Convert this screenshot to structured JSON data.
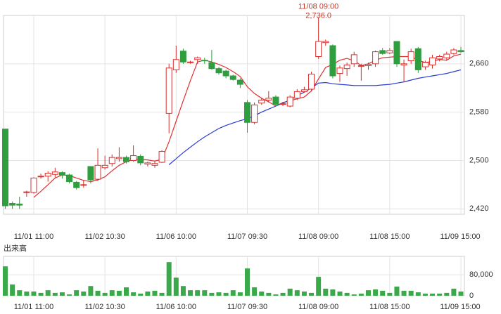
{
  "chart_data": [
    {
      "type": "candlestick",
      "categories": [
        null,
        null,
        null,
        null,
        "11/01 11:00",
        null,
        null,
        null,
        null,
        null,
        null,
        null,
        null,
        null,
        "11/02 10:30",
        null,
        null,
        null,
        null,
        null,
        null,
        null,
        null,
        null,
        "11/06 10:00",
        null,
        null,
        null,
        null,
        null,
        null,
        null,
        null,
        null,
        "11/07 09:30",
        null,
        null,
        null,
        null,
        null,
        null,
        null,
        null,
        null,
        "11/08 09:00",
        null,
        null,
        null,
        null,
        null,
        null,
        null,
        null,
        null,
        "11/08 15:00",
        null,
        null,
        null,
        null,
        null,
        null,
        null,
        null,
        null,
        "11/09 15:00"
      ],
      "open": [
        2552,
        2429,
        2428,
        2447,
        2447,
        2474,
        2474,
        2477,
        2480,
        2476,
        2464,
        2459,
        2490,
        2469,
        2488,
        2495,
        2503,
        2505,
        2500,
        2507,
        2494,
        2492,
        2497,
        2578,
        2650,
        2681,
        2663,
        2667,
        2666,
        2662,
        2652,
        2648,
        2640,
        2633,
        2596,
        2563,
        2595,
        2600,
        2605,
        2594,
        2590,
        2603,
        2614,
        2618,
        2672,
        2695,
        2690,
        2644,
        2652,
        2660,
        2657,
        2657,
        2660,
        2682,
        2678,
        2697,
        2658,
        2665,
        2685,
        2655,
        2658,
        2668,
        2670,
        2677,
        2682
      ],
      "high": [
        2552,
        2432,
        2440,
        2450,
        2472,
        2478,
        2482,
        2488,
        2482,
        2478,
        2466,
        2468,
        2490,
        2520,
        2508,
        2510,
        2522,
        2508,
        2525,
        2510,
        2498,
        2500,
        2517,
        2660,
        2690,
        2685,
        2665,
        2672,
        2670,
        2683,
        2655,
        2650,
        2642,
        2636,
        2600,
        2596,
        2603,
        2615,
        2608,
        2597,
        2608,
        2618,
        2622,
        2647,
        2736,
        2700,
        2692,
        2657,
        2662,
        2680,
        2660,
        2662,
        2682,
        2686,
        2686,
        2697,
        2667,
        2685,
        2688,
        2665,
        2675,
        2675,
        2680,
        2686,
        2688
      ],
      "low": [
        2420,
        2420,
        2420,
        2440,
        2445,
        2470,
        2465,
        2472,
        2470,
        2462,
        2452,
        2455,
        2462,
        2466,
        2485,
        2490,
        2498,
        2495,
        2498,
        2492,
        2490,
        2488,
        2496,
        2545,
        2645,
        2660,
        2660,
        2660,
        2660,
        2650,
        2642,
        2636,
        2632,
        2620,
        2546,
        2560,
        2592,
        2596,
        2590,
        2590,
        2588,
        2600,
        2612,
        2615,
        2668,
        2690,
        2636,
        2630,
        2640,
        2655,
        2632,
        2650,
        2655,
        2675,
        2676,
        2655,
        2630,
        2660,
        2645,
        2650,
        2652,
        2664,
        2665,
        2675,
        2678
      ],
      "close": [
        2425,
        2426,
        2426,
        2448,
        2471,
        2474,
        2479,
        2481,
        2476,
        2465,
        2455,
        2460,
        2468,
        2492,
        2492,
        2505,
        2505,
        2498,
        2508,
        2496,
        2496,
        2495,
        2515,
        2653,
        2667,
        2663,
        2663,
        2670,
        2665,
        2652,
        2645,
        2640,
        2634,
        2626,
        2563,
        2592,
        2600,
        2603,
        2593,
        2594,
        2605,
        2614,
        2617,
        2643,
        2697,
        2697,
        2640,
        2653,
        2658,
        2675,
        2657,
        2659,
        2680,
        2677,
        2682,
        2660,
        2660,
        2680,
        2650,
        2662,
        2670,
        2672,
        2676,
        2683,
        2680
      ],
      "up_color": "#d9312e",
      "down_color": "#2e9e3e",
      "lines": [
        {
          "color": "#e03030",
          "values": [
            null,
            null,
            null,
            null,
            2439,
            2449,
            2460,
            2471,
            2476,
            2475,
            2471,
            2467,
            2465,
            2468,
            2473,
            2483,
            2492,
            2498,
            2502,
            2502,
            2501,
            2499,
            2502,
            2531,
            2565,
            2599,
            2632,
            2663,
            2666,
            2663,
            2659,
            2654,
            2647,
            2639,
            2622,
            2611,
            2603,
            2597,
            2590,
            2596,
            2599,
            2602,
            2605,
            2615,
            2635,
            2654,
            2659,
            2666,
            2669,
            2665,
            2657,
            2660,
            2666,
            2670,
            2671,
            2672,
            2672,
            2672,
            2666,
            2662,
            2664,
            2667,
            2666,
            2673,
            2676
          ]
        },
        {
          "color": "#2a3bd6",
          "values": [
            null,
            null,
            null,
            null,
            null,
            null,
            null,
            null,
            null,
            null,
            null,
            null,
            null,
            null,
            null,
            null,
            null,
            null,
            null,
            null,
            null,
            null,
            null,
            2493,
            2503,
            2513,
            2522,
            2531,
            2539,
            2546,
            2553,
            2558,
            2562,
            2566,
            2569,
            2574,
            2580,
            2585,
            2590,
            2595,
            2600,
            2607,
            2613,
            2620,
            2628,
            2629,
            2627,
            2626,
            2625,
            2624,
            2624,
            2624,
            2624,
            2625,
            2626,
            2628,
            2630,
            2633,
            2636,
            2638,
            2640,
            2642,
            2644,
            2647,
            2650
          ]
        }
      ],
      "annotation": {
        "text": "11/08 09:00",
        "value": 2736,
        "label": "2,736.0"
      },
      "ylim": [
        2411,
        2740
      ],
      "yticks": [
        {
          "value": 2420,
          "label": "2,420"
        },
        {
          "value": 2500,
          "label": "2,500"
        },
        {
          "value": 2580,
          "label": "2,580"
        },
        {
          "value": 2660,
          "label": "2,660"
        }
      ],
      "grid": true
    },
    {
      "type": "bar",
      "title": "出来高",
      "color": "#3aa94a",
      "categories": [
        null,
        null,
        null,
        null,
        "11/01 11:00",
        null,
        null,
        null,
        null,
        null,
        null,
        null,
        null,
        null,
        "11/02 10:30",
        null,
        null,
        null,
        null,
        null,
        null,
        null,
        null,
        null,
        "11/06 10:00",
        null,
        null,
        null,
        null,
        null,
        null,
        null,
        null,
        null,
        "11/07 09:30",
        null,
        null,
        null,
        null,
        null,
        null,
        null,
        null,
        null,
        "11/08 09:00",
        null,
        null,
        null,
        null,
        null,
        null,
        null,
        null,
        null,
        "11/08 15:00",
        null,
        null,
        null,
        null,
        null,
        null,
        null,
        null,
        null,
        "11/09 15:00"
      ],
      "values": [
        112000,
        43000,
        21000,
        16000,
        16000,
        11000,
        21000,
        11000,
        13000,
        5000,
        21000,
        16000,
        37000,
        19000,
        11000,
        21000,
        19000,
        32000,
        13000,
        8000,
        16000,
        19000,
        11000,
        128000,
        69000,
        37000,
        21000,
        21000,
        21000,
        11000,
        13000,
        11000,
        21000,
        13000,
        104000,
        32000,
        16000,
        11000,
        5000,
        11000,
        27000,
        21000,
        16000,
        11000,
        72000,
        27000,
        24000,
        16000,
        11000,
        5000,
        8000,
        21000,
        24000,
        19000,
        11000,
        35000,
        19000,
        19000,
        13000,
        8000,
        8000,
        8000,
        11000,
        27000,
        16000
      ],
      "ylim": [
        0,
        150000
      ],
      "yticks": [
        0,
        {
          "value": 80000,
          "label": "80,000"
        }
      ],
      "grid": true
    }
  ]
}
